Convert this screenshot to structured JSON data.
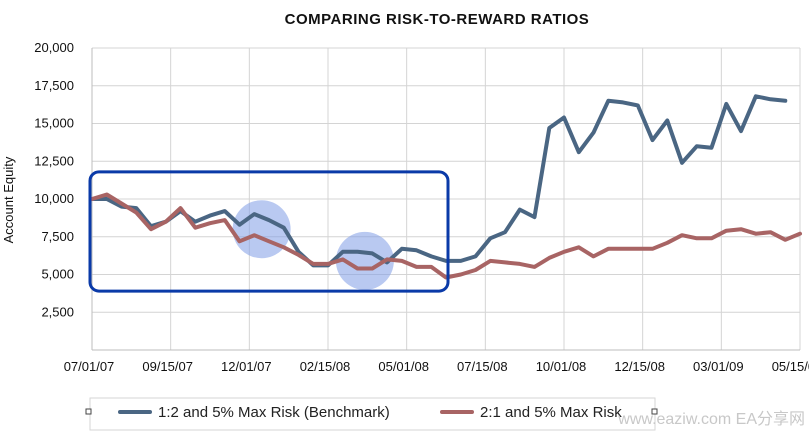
{
  "chart_data": {
    "type": "line",
    "title": "COMPARING RISK-TO-REWARD RATIOS",
    "xlabel": "",
    "ylabel": "Account Equity",
    "ylim": [
      0,
      20000
    ],
    "yticks": [
      "2,500",
      "5,000",
      "7,500",
      "10,000",
      "12,500",
      "15,000",
      "17,500",
      "20,000"
    ],
    "ytick_values": [
      2500,
      5000,
      7500,
      10000,
      12500,
      15000,
      17500,
      20000
    ],
    "xticks": [
      "07/01/07",
      "09/15/07",
      "12/01/07",
      "02/15/08",
      "05/01/08",
      "07/15/08",
      "10/01/08",
      "12/15/08",
      "03/01/09",
      "05/15/09"
    ],
    "grid": true,
    "legend_position": "bottom",
    "series": [
      {
        "name": "1:2 and 5% Max Risk (Benchmark)",
        "color": "#4a6683",
        "values": [
          10000,
          10000,
          9500,
          9400,
          8200,
          8500,
          9200,
          8500,
          8900,
          9200,
          8300,
          9000,
          8600,
          8100,
          6500,
          5600,
          5600,
          6500,
          6500,
          6400,
          5800,
          6700,
          6600,
          6200,
          5900,
          5900,
          6200,
          7400,
          7800,
          9300,
          8800,
          14700,
          15400,
          13100,
          14400,
          16500,
          16400,
          16200,
          13900,
          15200,
          12400,
          13500,
          13400,
          16300,
          14500,
          16800,
          16600,
          16500
        ]
      },
      {
        "name": "2:1 and 5% Max Risk",
        "color": "#a86464",
        "values": [
          10000,
          10300,
          9700,
          9100,
          8000,
          8500,
          9400,
          8100,
          8400,
          8600,
          7200,
          7600,
          7200,
          6800,
          6300,
          5700,
          5700,
          6000,
          5400,
          5400,
          6000,
          5900,
          5500,
          5500,
          4800,
          5000,
          5300,
          5900,
          5800,
          5700,
          5500,
          6100,
          6500,
          6800,
          6200,
          6700,
          6700,
          6700,
          6700,
          7100,
          7600,
          7400,
          7400,
          7900,
          8000,
          7700,
          7800,
          7300,
          7700
        ]
      }
    ],
    "annotations": [
      {
        "shape": "rounded-rectangle",
        "color": "#0a3aa8",
        "x_range": [
          0,
          24
        ],
        "y_range": [
          3900,
          11800
        ]
      },
      {
        "shape": "circle",
        "color": "#7f9ce6",
        "x": 11.5,
        "y": 8000
      },
      {
        "shape": "circle",
        "color": "#7f9ce6",
        "x": 18.5,
        "y": 5900
      }
    ]
  },
  "watermark": "www.eaziw.com EA分享网"
}
